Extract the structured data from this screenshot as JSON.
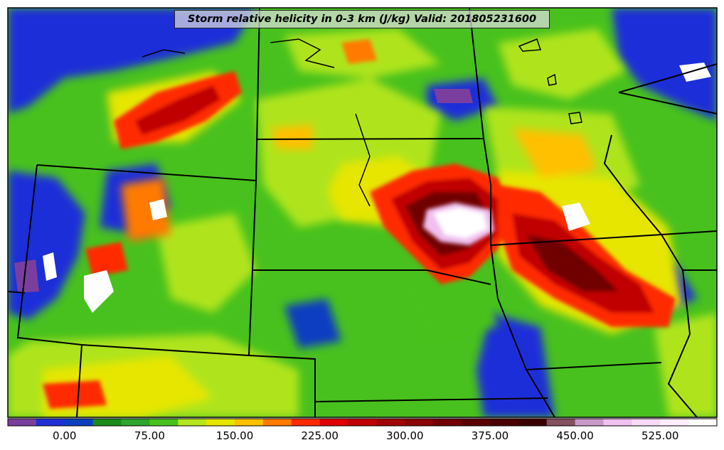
{
  "title": "Storm relative helicity in 0-3 km (J/kg) Valid: 201805231600",
  "colorbar": {
    "colors": [
      "#7a3f9e",
      "#1f2fd8",
      "#0c3ec0",
      "#1a8a1a",
      "#2ea52e",
      "#48c11e",
      "#b5e61d",
      "#e6e600",
      "#ffc000",
      "#ff7a00",
      "#ff2a00",
      "#e00000",
      "#c00000",
      "#a00000",
      "#8a0000",
      "#700000",
      "#5a0000",
      "#4a0000",
      "#3a0000",
      "#855060",
      "#c89ac8",
      "#f0c0f0",
      "#f8daf8",
      "#ffeeff",
      "#ffffff"
    ],
    "tick_labels": [
      "0.00",
      "75.00",
      "150.00",
      "225.00",
      "300.00",
      "375.00",
      "450.00",
      "525.00"
    ],
    "tick_values": [
      0,
      75,
      150,
      225,
      300,
      375,
      450,
      525
    ],
    "min": -50,
    "max": 575
  },
  "icons": {
    "map": "contour-map"
  }
}
